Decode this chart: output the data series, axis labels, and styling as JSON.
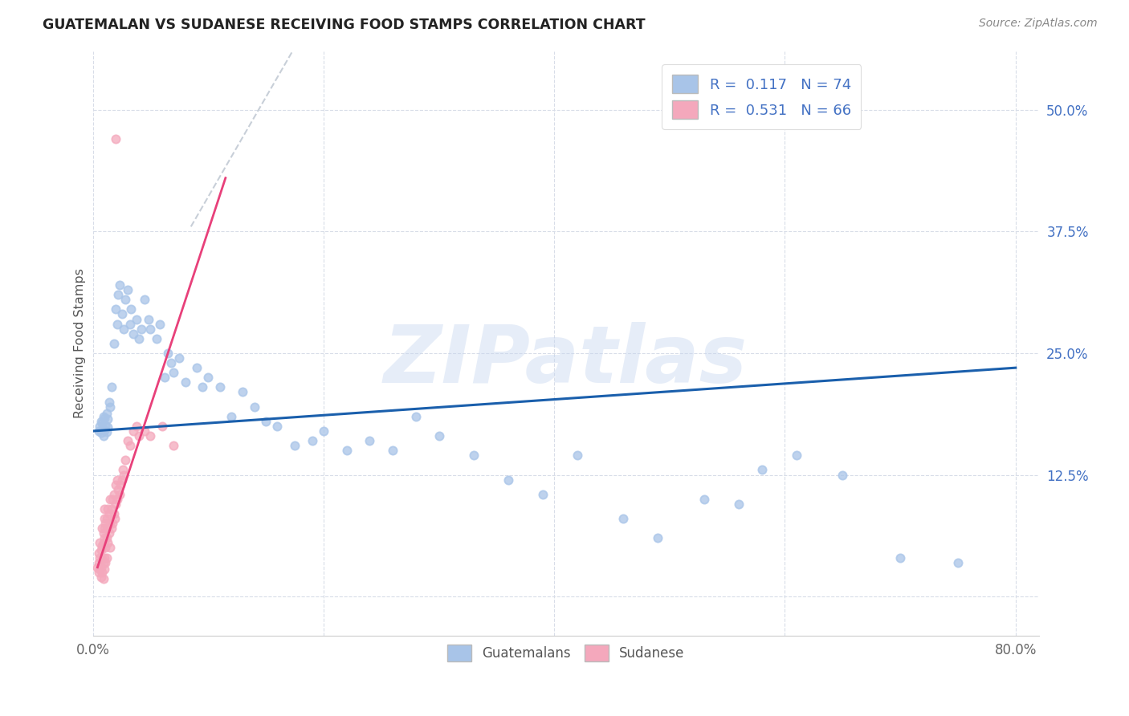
{
  "title": "GUATEMALAN VS SUDANESE RECEIVING FOOD STAMPS CORRELATION CHART",
  "source": "Source: ZipAtlas.com",
  "ylabel": "Receiving Food Stamps",
  "xlim": [
    0.0,
    0.82
  ],
  "ylim": [
    -0.04,
    0.56
  ],
  "xtick_vals": [
    0.0,
    0.2,
    0.4,
    0.6,
    0.8
  ],
  "ytick_vals": [
    0.0,
    0.125,
    0.25,
    0.375,
    0.5
  ],
  "guatemalan_color": "#a8c4e8",
  "sudanese_color": "#f4a8bc",
  "guatemalan_line_color": "#1a5fac",
  "sudanese_line_color": "#e8407a",
  "dashed_line_color": "#c8cfd8",
  "R_guatemalan": 0.117,
  "N_guatemalan": 74,
  "R_sudanese": 0.531,
  "N_sudanese": 66,
  "watermark_text": "ZIPatlas",
  "background_color": "#ffffff",
  "grid_color": "#d8dde8",
  "title_color": "#222222",
  "source_color": "#888888",
  "ylabel_color": "#555555",
  "tick_label_color_x": "#666666",
  "tick_label_color_y": "#4472c4",
  "legend_label_color": "#4472c4",
  "bottom_legend_label_color": "#555555",
  "scatter_size": 55,
  "scatter_alpha": 0.75,
  "scatter_linewidth": 1.3,
  "g_x": [
    0.005,
    0.006,
    0.007,
    0.007,
    0.008,
    0.008,
    0.009,
    0.009,
    0.01,
    0.01,
    0.011,
    0.012,
    0.012,
    0.013,
    0.013,
    0.014,
    0.015,
    0.016,
    0.018,
    0.02,
    0.021,
    0.022,
    0.023,
    0.025,
    0.027,
    0.028,
    0.03,
    0.032,
    0.033,
    0.035,
    0.038,
    0.04,
    0.042,
    0.045,
    0.048,
    0.05,
    0.055,
    0.058,
    0.062,
    0.065,
    0.068,
    0.07,
    0.075,
    0.08,
    0.09,
    0.095,
    0.1,
    0.11,
    0.12,
    0.13,
    0.14,
    0.15,
    0.16,
    0.175,
    0.19,
    0.2,
    0.22,
    0.24,
    0.26,
    0.28,
    0.3,
    0.33,
    0.36,
    0.39,
    0.42,
    0.46,
    0.49,
    0.53,
    0.56,
    0.58,
    0.61,
    0.65,
    0.7,
    0.75
  ],
  "g_y": [
    0.17,
    0.175,
    0.168,
    0.18,
    0.172,
    0.178,
    0.165,
    0.185,
    0.171,
    0.183,
    0.176,
    0.169,
    0.188,
    0.182,
    0.174,
    0.2,
    0.195,
    0.215,
    0.26,
    0.295,
    0.28,
    0.31,
    0.32,
    0.29,
    0.275,
    0.305,
    0.315,
    0.28,
    0.295,
    0.27,
    0.285,
    0.265,
    0.275,
    0.305,
    0.285,
    0.275,
    0.265,
    0.28,
    0.225,
    0.25,
    0.24,
    0.23,
    0.245,
    0.22,
    0.235,
    0.215,
    0.225,
    0.215,
    0.185,
    0.21,
    0.195,
    0.18,
    0.175,
    0.155,
    0.16,
    0.17,
    0.15,
    0.16,
    0.15,
    0.185,
    0.165,
    0.145,
    0.12,
    0.105,
    0.145,
    0.08,
    0.06,
    0.1,
    0.095,
    0.13,
    0.145,
    0.125,
    0.04,
    0.035
  ],
  "s_x": [
    0.004,
    0.005,
    0.005,
    0.005,
    0.006,
    0.006,
    0.006,
    0.007,
    0.007,
    0.007,
    0.008,
    0.008,
    0.008,
    0.008,
    0.009,
    0.009,
    0.009,
    0.009,
    0.01,
    0.01,
    0.01,
    0.01,
    0.01,
    0.01,
    0.011,
    0.011,
    0.011,
    0.012,
    0.012,
    0.012,
    0.013,
    0.013,
    0.013,
    0.014,
    0.014,
    0.015,
    0.015,
    0.015,
    0.016,
    0.016,
    0.017,
    0.017,
    0.018,
    0.018,
    0.019,
    0.02,
    0.02,
    0.021,
    0.021,
    0.022,
    0.023,
    0.024,
    0.025,
    0.026,
    0.027,
    0.028,
    0.03,
    0.032,
    0.035,
    0.038,
    0.04,
    0.045,
    0.05,
    0.06,
    0.07,
    0.02
  ],
  "s_y": [
    0.03,
    0.025,
    0.045,
    0.035,
    0.028,
    0.04,
    0.055,
    0.03,
    0.048,
    0.02,
    0.038,
    0.052,
    0.025,
    0.07,
    0.035,
    0.055,
    0.018,
    0.065,
    0.04,
    0.06,
    0.028,
    0.07,
    0.08,
    0.09,
    0.05,
    0.075,
    0.035,
    0.06,
    0.08,
    0.04,
    0.055,
    0.07,
    0.09,
    0.065,
    0.085,
    0.05,
    0.075,
    0.1,
    0.07,
    0.09,
    0.075,
    0.1,
    0.085,
    0.105,
    0.08,
    0.095,
    0.115,
    0.1,
    0.12,
    0.11,
    0.105,
    0.115,
    0.12,
    0.13,
    0.125,
    0.14,
    0.16,
    0.155,
    0.17,
    0.175,
    0.165,
    0.17,
    0.165,
    0.175,
    0.155,
    0.47
  ],
  "blue_line_x": [
    0.0,
    0.8
  ],
  "blue_line_y": [
    0.17,
    0.235
  ],
  "pink_line_x": [
    0.004,
    0.115
  ],
  "pink_line_y": [
    0.03,
    0.43
  ],
  "dashed_line_x": [
    0.085,
    0.3
  ],
  "dashed_line_y": [
    0.38,
    0.82
  ]
}
